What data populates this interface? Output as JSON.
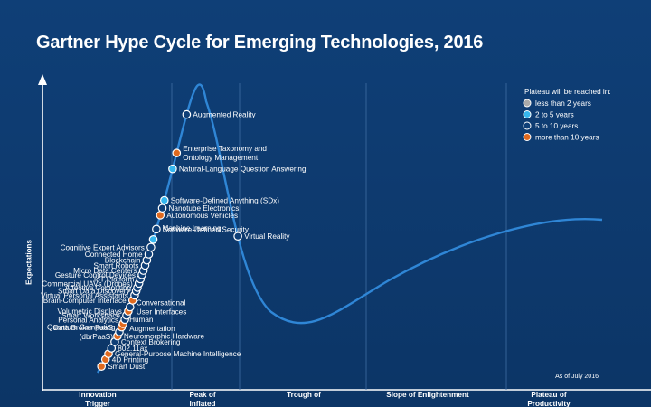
{
  "colors": {
    "background": "#0f3f77",
    "curve": "#2f86d6",
    "cat_less_than_2": "#a9a9a9",
    "cat_2_to_5": "#36b7ee",
    "cat_5_to_10": "#0f3f77",
    "cat_more_than_10": "#e06a1f"
  },
  "chart_data": {
    "type": "scatter",
    "title": "Gartner Hype Cycle for Emerging Technologies, 2016",
    "ylabel": "Expectations",
    "note": "As of July 2016",
    "phases": [
      {
        "lines": [
          "Innovation",
          "Trigger"
        ]
      },
      {
        "lines": [
          "Peak of",
          "Inflated"
        ]
      },
      {
        "lines": [
          "Trough of",
          ""
        ]
      },
      {
        "lines": [
          "Slope of Enlightenment",
          ""
        ]
      },
      {
        "lines": [
          "Plateau of",
          "Productivity"
        ]
      }
    ],
    "legend": {
      "title": "Plateau will be reached in:",
      "entries": [
        {
          "key": "lt2",
          "label": "less than 2 years",
          "color": "#a9a9a9"
        },
        {
          "key": "2to5",
          "label": "2 to 5 years",
          "color": "#36b7ee"
        },
        {
          "key": "5to10",
          "label": "5 to 10 years",
          "color": "#0f3f77"
        },
        {
          "key": "gt10",
          "label": "more than 10 years",
          "color": "#e06a1f"
        }
      ]
    },
    "points": [
      {
        "name": "Smart Dust",
        "cat": "gt10",
        "t": 0.008
      },
      {
        "name": "4D Printing",
        "cat": "gt10",
        "t": 0.017
      },
      {
        "name": "General-Purpose Machine Intelligence",
        "cat": "gt10",
        "t": 0.024
      },
      {
        "name": "802.11ax",
        "cat": "5to10",
        "t": 0.031
      },
      {
        "name": "Context Brokering",
        "cat": "5to10",
        "t": 0.039
      },
      {
        "name": "Neuromorphic Hardware",
        "cat": "gt10",
        "t": 0.046
      },
      {
        "name": "Data Broker PaaS (dbrPaaS)",
        "cat": "5to10",
        "t": 0.051
      },
      {
        "name": "Quantum Computing",
        "cat": "gt10",
        "t": 0.057
      },
      {
        "name": "Human Augmentation",
        "cat": "gt10",
        "t": 0.061
      },
      {
        "name": "Personal Analytics",
        "cat": "5to10",
        "t": 0.066
      },
      {
        "name": "Smart Workspace",
        "cat": "5to10",
        "t": 0.071
      },
      {
        "name": "Volumetric Displays",
        "cat": "gt10",
        "t": 0.076
      },
      {
        "name": "Conversational User Interfaces",
        "cat": "5to10",
        "t": 0.081
      },
      {
        "name": "Brain-Computer Interface",
        "cat": "gt10",
        "t": 0.089
      },
      {
        "name": "Virtual Personal Assistants",
        "cat": "5to10",
        "t": 0.095
      },
      {
        "name": "Smart Data Discovery",
        "cat": "5to10",
        "t": 0.1
      },
      {
        "name": "Affective Computing",
        "cat": "5to10",
        "t": 0.104
      },
      {
        "name": "Commercial UAVs (Drones)",
        "cat": "5to10",
        "t": 0.109
      },
      {
        "name": "IoT Platform",
        "cat": "5to10",
        "t": 0.114
      },
      {
        "name": "Gesture Control Devices",
        "cat": "5to10",
        "t": 0.119
      },
      {
        "name": "Micro Data Centers",
        "cat": "5to10",
        "t": 0.124
      },
      {
        "name": "Smart Robots",
        "cat": "5to10",
        "t": 0.13
      },
      {
        "name": "Blockchain",
        "cat": "5to10",
        "t": 0.136
      },
      {
        "name": "Connected Home",
        "cat": "5to10",
        "t": 0.143
      },
      {
        "name": "Cognitive Expert Advisors",
        "cat": "5to10",
        "t": 0.151
      },
      {
        "name": "Machine Learning",
        "cat": "2to5",
        "t": 0.16
      },
      {
        "name": "Software-Defined Security",
        "cat": "5to10",
        "t": 0.172
      },
      {
        "name": "Autonomous Vehicles",
        "cat": "gt10",
        "t": 0.188
      },
      {
        "name": "Nanotube Electronics",
        "cat": "5to10",
        "t": 0.196
      },
      {
        "name": "Software-Defined Anything (SDx)",
        "cat": "2to5",
        "t": 0.205
      },
      {
        "name": "Natural-Language Question Answering",
        "cat": "2to5",
        "t": 0.241
      },
      {
        "name": "Enterprise Taxonomy and Ontology Management",
        "cat": "gt10",
        "t": 0.259
      },
      {
        "name": "Augmented Reality",
        "cat": "5to10",
        "t": 0.303
      },
      {
        "name": "Virtual Reality",
        "cat": "5to10",
        "t": 0.514
      }
    ]
  }
}
